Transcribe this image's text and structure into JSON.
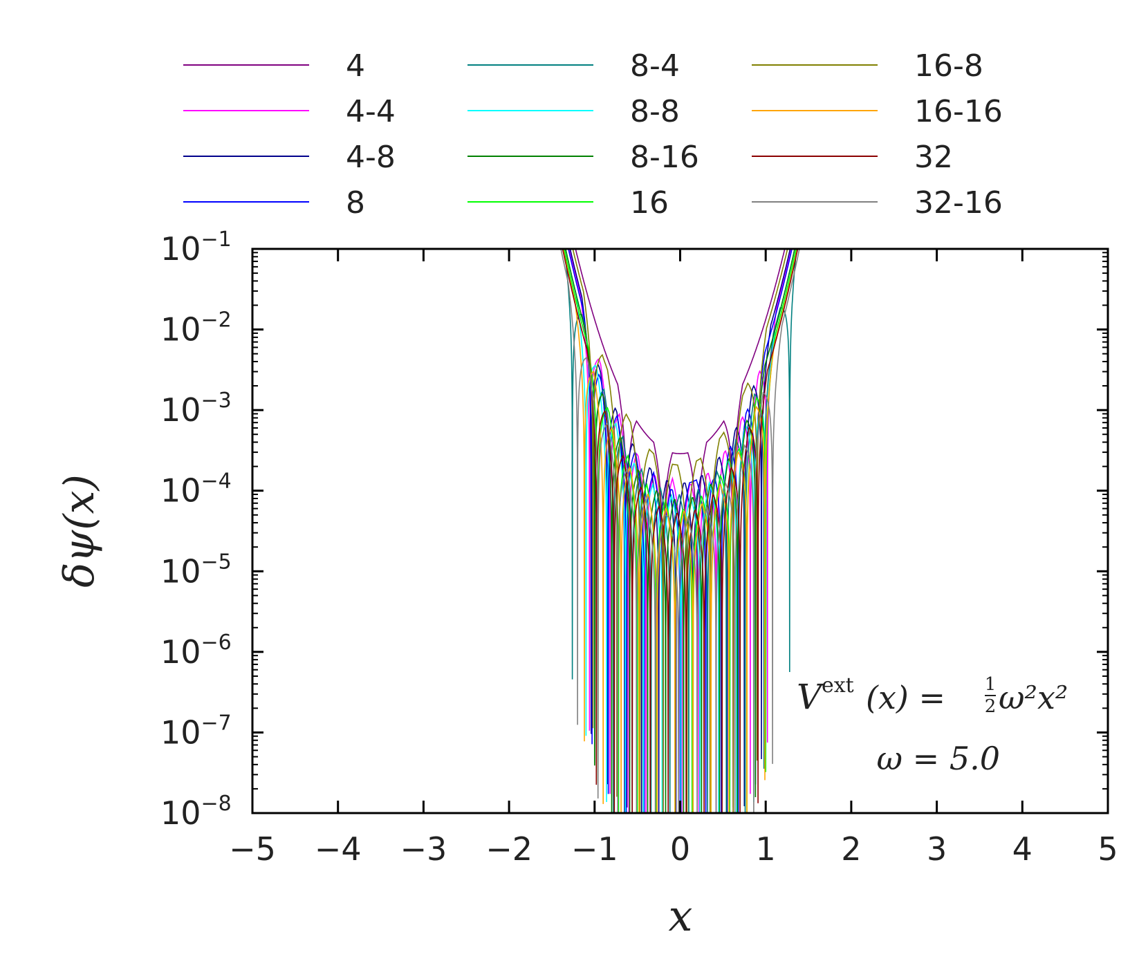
{
  "chart_data": {
    "type": "line",
    "yscale": "log",
    "xlabel": "x",
    "ylabel": "δψ(x)",
    "xlim": [
      -5,
      5
    ],
    "ylim": [
      1e-08,
      0.1
    ],
    "x_ticks": [
      -5,
      -4,
      -3,
      -2,
      -1,
      0,
      1,
      2,
      3,
      4,
      5
    ],
    "x_tick_labels": [
      "−5",
      "−4",
      "−3",
      "−2",
      "−1",
      "0",
      "1",
      "2",
      "3",
      "4",
      "5"
    ],
    "y_ticks": [
      {
        "value": 0.1,
        "base": "10",
        "exp": "−1"
      },
      {
        "value": 0.01,
        "base": "10",
        "exp": "−2"
      },
      {
        "value": 0.001,
        "base": "10",
        "exp": "−3"
      },
      {
        "value": 0.0001,
        "base": "10",
        "exp": "−4"
      },
      {
        "value": 1e-05,
        "base": "10",
        "exp": "−5"
      },
      {
        "value": 1e-06,
        "base": "10",
        "exp": "−6"
      },
      {
        "value": 1e-07,
        "base": "10",
        "exp": "−7"
      },
      {
        "value": 1e-08,
        "base": "10",
        "exp": "−8"
      }
    ],
    "grid": false,
    "legend_position": "top",
    "legend_columns": 3,
    "annotation": {
      "formula_V": "V",
      "formula_ext": "ext",
      "formula_rest": "(x) =",
      "formula_frac_num": "1",
      "formula_frac_den": "2",
      "formula_tail": "ω²x²",
      "omega": "ω = 5.0"
    },
    "series": [
      {
        "name": "4",
        "color": "#800080",
        "zeros": [
          -0.62,
          -0.2,
          0.2,
          0.62
        ],
        "env_base": 0.00018,
        "amp": 1.0
      },
      {
        "name": "4-4",
        "color": "#ff00ff",
        "zeros": [
          -1.06,
          -0.82,
          -0.6,
          -0.4,
          -0.2,
          0.02,
          0.22,
          0.42,
          0.62,
          0.82,
          1.02
        ],
        "env_base": 0.00012,
        "amp": 0.55
      },
      {
        "name": "4-8",
        "color": "#00008b",
        "zeros": [
          -1.04,
          -0.85,
          -0.65,
          -0.45,
          -0.25,
          -0.05,
          0.15,
          0.35,
          0.55,
          0.75,
          0.95
        ],
        "env_base": 0.00013,
        "amp": 0.55
      },
      {
        "name": "8",
        "color": "#0000ff",
        "zeros": [
          -1.03,
          -0.84,
          -0.63,
          -0.42,
          -0.2,
          0.0,
          0.3,
          0.48,
          0.68,
          0.88
        ],
        "env_base": 0.00011,
        "amp": 0.5
      },
      {
        "name": "8-4",
        "color": "#008080",
        "zeros": [
          -1.26,
          -1.0,
          -0.78,
          -0.56,
          -0.34,
          -0.12,
          0.1,
          0.32,
          0.54,
          0.76,
          0.98,
          1.28
        ],
        "env_base": 9e-05,
        "amp": 0.4
      },
      {
        "name": "8-8",
        "color": "#00ffff",
        "zeros": [
          -1.1,
          -0.86,
          -0.64,
          -0.43,
          -0.21,
          0.01,
          0.23,
          0.45,
          0.66,
          0.86,
          1.0
        ],
        "env_base": 8e-05,
        "amp": 0.45
      },
      {
        "name": "8-16",
        "color": "#008000",
        "zeros": [
          -1.0,
          -0.8,
          -0.59,
          -0.38,
          -0.17,
          0.04,
          0.25,
          0.46,
          0.67,
          0.88
        ],
        "env_base": 8e-05,
        "amp": 0.45
      },
      {
        "name": "16",
        "color": "#00ff00",
        "zeros": [
          -0.96,
          -0.72,
          -0.5,
          -0.28,
          -0.06,
          0.14,
          0.36,
          0.58,
          0.78,
          1.0
        ],
        "env_base": 7e-05,
        "amp": 0.4
      },
      {
        "name": "16-8",
        "color": "#808000",
        "zeros": [
          -1.02,
          -0.74,
          -0.47,
          -0.2,
          0.08,
          0.35,
          0.62,
          0.9
        ],
        "env_base": 0.00016,
        "amp": 0.7
      },
      {
        "name": "16-16",
        "color": "#ffa500",
        "zeros": [
          -1.12,
          -0.9,
          -0.69,
          -0.48,
          -0.27,
          -0.06,
          0.15,
          0.36,
          0.57,
          0.78,
          0.99
        ],
        "env_base": 6e-05,
        "amp": 0.4
      },
      {
        "name": "32",
        "color": "#8b0000",
        "zeros": [
          -0.98,
          -0.77,
          -0.56,
          -0.35,
          -0.14,
          0.07,
          0.28,
          0.49,
          0.7,
          0.91
        ],
        "env_base": 6e-05,
        "amp": 0.35
      },
      {
        "name": "32-16",
        "color": "#808080",
        "zeros": [
          -1.2,
          -0.96,
          -0.73,
          -0.51,
          -0.29,
          -0.02,
          0.2,
          0.42,
          0.64,
          0.86,
          1.08
        ],
        "env_base": 5e-05,
        "amp": 0.3
      }
    ]
  }
}
